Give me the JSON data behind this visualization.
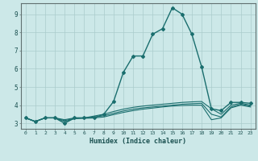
{
  "xlabel": "Humidex (Indice chaleur)",
  "bg_color": "#cce8e8",
  "grid_color": "#aacccc",
  "line_color": "#1a6e6e",
  "xlim": [
    -0.5,
    23.5
  ],
  "ylim": [
    2.7,
    9.6
  ],
  "xticks": [
    0,
    1,
    2,
    3,
    4,
    5,
    6,
    7,
    8,
    9,
    10,
    11,
    12,
    13,
    14,
    15,
    16,
    17,
    18,
    19,
    20,
    21,
    22,
    23
  ],
  "yticks": [
    3,
    4,
    5,
    6,
    7,
    8,
    9
  ],
  "series1_x": [
    0,
    1,
    2,
    3,
    4,
    5,
    6,
    7,
    8,
    9,
    10,
    11,
    12,
    13,
    14,
    15,
    16,
    17,
    18,
    19,
    20,
    21,
    22,
    23
  ],
  "series1_y": [
    3.3,
    3.1,
    3.3,
    3.3,
    3.0,
    3.3,
    3.3,
    3.3,
    3.5,
    4.2,
    5.8,
    6.7,
    6.7,
    7.9,
    8.2,
    9.35,
    9.0,
    7.9,
    6.1,
    3.8,
    3.7,
    4.15,
    4.15,
    4.1
  ],
  "series2_x": [
    0,
    1,
    2,
    3,
    4,
    5,
    6,
    7,
    8,
    9,
    10,
    11,
    12,
    13,
    14,
    15,
    16,
    17,
    18,
    19,
    20,
    21,
    22,
    23
  ],
  "series2_y": [
    3.3,
    3.1,
    3.3,
    3.3,
    3.2,
    3.3,
    3.3,
    3.4,
    3.5,
    3.65,
    3.78,
    3.88,
    3.95,
    4.0,
    4.05,
    4.1,
    4.15,
    4.18,
    4.2,
    3.8,
    3.5,
    4.0,
    4.1,
    4.0
  ],
  "series3_x": [
    0,
    1,
    2,
    3,
    4,
    5,
    6,
    7,
    8,
    9,
    10,
    11,
    12,
    13,
    14,
    15,
    16,
    17,
    18,
    19,
    20,
    21,
    22,
    23
  ],
  "series3_y": [
    3.3,
    3.1,
    3.3,
    3.3,
    3.15,
    3.28,
    3.3,
    3.35,
    3.42,
    3.55,
    3.68,
    3.78,
    3.85,
    3.9,
    3.95,
    4.0,
    4.05,
    4.08,
    4.1,
    3.5,
    3.35,
    3.9,
    4.05,
    3.95
  ],
  "series4_x": [
    0,
    1,
    2,
    3,
    4,
    5,
    6,
    7,
    8,
    9,
    10,
    11,
    12,
    13,
    14,
    15,
    16,
    17,
    18,
    19,
    20,
    21,
    22,
    23
  ],
  "series4_y": [
    3.3,
    3.1,
    3.3,
    3.3,
    3.1,
    3.25,
    3.28,
    3.3,
    3.35,
    3.48,
    3.6,
    3.7,
    3.78,
    3.84,
    3.9,
    3.95,
    3.98,
    4.0,
    4.0,
    3.2,
    3.3,
    3.85,
    4.0,
    3.9
  ]
}
